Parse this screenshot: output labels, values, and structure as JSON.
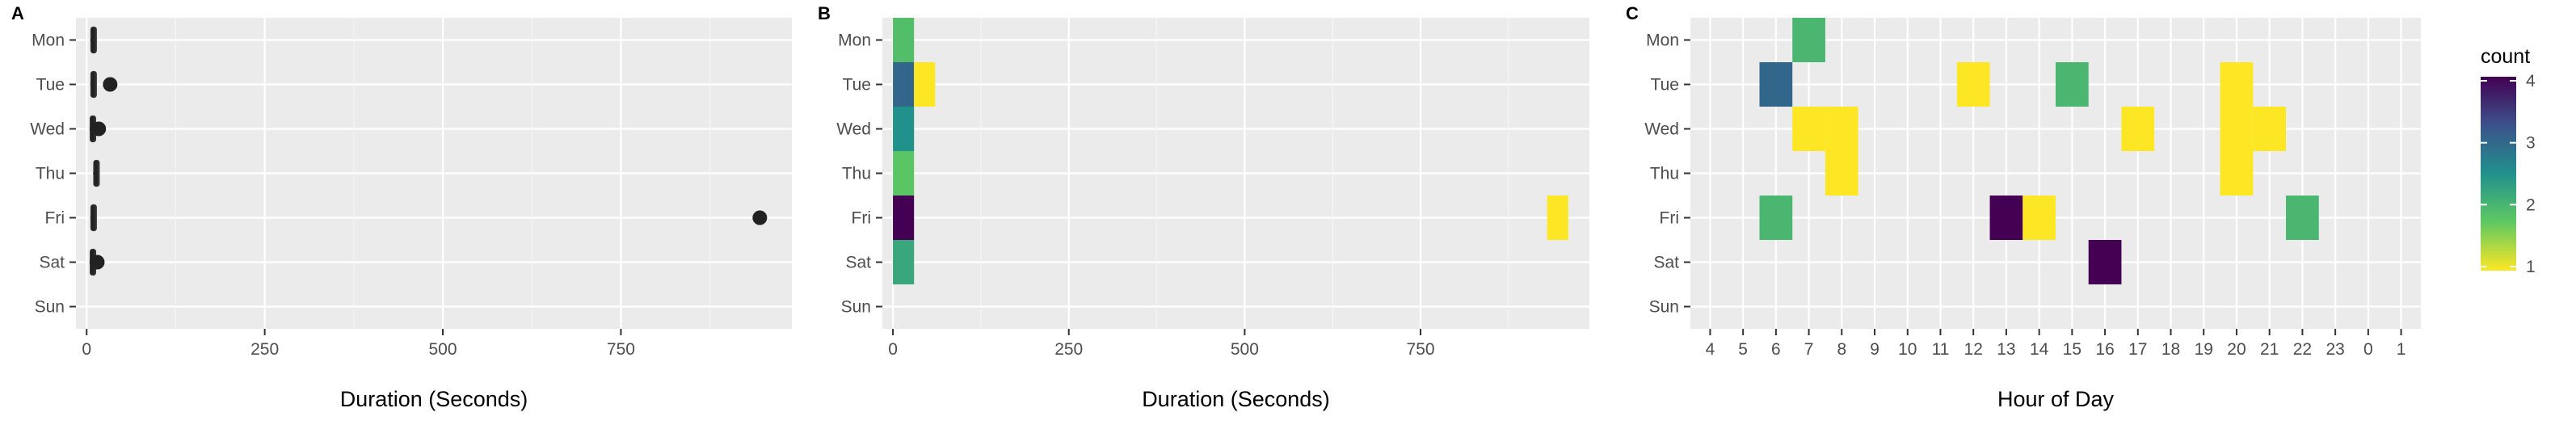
{
  "figure": {
    "panel_labels": [
      "A",
      "B",
      "C"
    ]
  },
  "chart_data": [
    {
      "type": "boxplot",
      "panel": "A",
      "xlabel": "Duration (Seconds)",
      "ylabel": "",
      "categories": [
        "Mon",
        "Tue",
        "Wed",
        "Thu",
        "Fri",
        "Sat",
        "Sun"
      ],
      "xlim": [
        -15,
        990
      ],
      "xticks": [
        0,
        250,
        500,
        750
      ],
      "boxes": [
        {
          "day": "Mon",
          "min": 5,
          "q1": 7,
          "median": 9,
          "q3": 11,
          "max": 13,
          "outliers": []
        },
        {
          "day": "Tue",
          "min": 5,
          "q1": 7,
          "median": 9,
          "q3": 11,
          "max": 13,
          "outliers": [
            33
          ]
        },
        {
          "day": "Wed",
          "min": 4,
          "q1": 6,
          "median": 8,
          "q3": 10,
          "max": 12,
          "outliers": [
            17
          ]
        },
        {
          "day": "Thu",
          "min": 9,
          "q1": 11,
          "median": 13,
          "q3": 15,
          "max": 17,
          "outliers": []
        },
        {
          "day": "Fri",
          "min": 5,
          "q1": 7,
          "median": 9,
          "q3": 11,
          "max": 13,
          "outliers": [
            945
          ]
        },
        {
          "day": "Sat",
          "min": 4,
          "q1": 6,
          "median": 8,
          "q3": 10,
          "max": 12,
          "outliers": [
            15
          ]
        },
        {
          "day": "Sun",
          "min": null,
          "q1": null,
          "median": null,
          "q3": null,
          "max": null,
          "outliers": []
        }
      ],
      "grid": true
    },
    {
      "type": "heatmap",
      "panel": "B",
      "xlabel": "Duration (Seconds)",
      "ylabel": "",
      "categories": [
        "Mon",
        "Tue",
        "Wed",
        "Thu",
        "Fri",
        "Sat",
        "Sun"
      ],
      "xlim": [
        -15,
        990
      ],
      "xticks": [
        0,
        250,
        500,
        750
      ],
      "bin_width": 30,
      "cells": [
        {
          "day": "Mon",
          "x": 15,
          "count": 1.9
        },
        {
          "day": "Tue",
          "x": 15,
          "count": 3.0
        },
        {
          "day": "Tue",
          "x": 45,
          "count": 1.0
        },
        {
          "day": "Wed",
          "x": 15,
          "count": 2.5
        },
        {
          "day": "Thu",
          "x": 15,
          "count": 1.8
        },
        {
          "day": "Fri",
          "x": 15,
          "count": 4.0
        },
        {
          "day": "Fri",
          "x": 945,
          "count": 1.0
        },
        {
          "day": "Sat",
          "x": 15,
          "count": 2.2
        }
      ],
      "grid": true
    },
    {
      "type": "heatmap",
      "panel": "C",
      "xlabel": "Hour of Day",
      "ylabel": "",
      "categories": [
        "Mon",
        "Tue",
        "Wed",
        "Thu",
        "Fri",
        "Sat",
        "Sun"
      ],
      "hours": [
        "4",
        "5",
        "6",
        "7",
        "8",
        "9",
        "10",
        "11",
        "12",
        "13",
        "14",
        "15",
        "16",
        "17",
        "18",
        "19",
        "20",
        "21",
        "22",
        "23",
        "0",
        "1"
      ],
      "cells": [
        {
          "day": "Mon",
          "hour": "7",
          "count": 2
        },
        {
          "day": "Tue",
          "hour": "6",
          "count": 3
        },
        {
          "day": "Tue",
          "hour": "12",
          "count": 1
        },
        {
          "day": "Tue",
          "hour": "15",
          "count": 2
        },
        {
          "day": "Tue",
          "hour": "20",
          "count": 1
        },
        {
          "day": "Wed",
          "hour": "7",
          "count": 1
        },
        {
          "day": "Wed",
          "hour": "8",
          "count": 1
        },
        {
          "day": "Wed",
          "hour": "17",
          "count": 1
        },
        {
          "day": "Wed",
          "hour": "20",
          "count": 1
        },
        {
          "day": "Wed",
          "hour": "21",
          "count": 1
        },
        {
          "day": "Thu",
          "hour": "8",
          "count": 1
        },
        {
          "day": "Thu",
          "hour": "20",
          "count": 1
        },
        {
          "day": "Fri",
          "hour": "6",
          "count": 2
        },
        {
          "day": "Fri",
          "hour": "13",
          "count": 4
        },
        {
          "day": "Fri",
          "hour": "14",
          "count": 1
        },
        {
          "day": "Fri",
          "hour": "22",
          "count": 2
        },
        {
          "day": "Sat",
          "hour": "16",
          "count": 4
        }
      ],
      "legend": {
        "title": "count",
        "ticks": [
          1,
          2,
          3,
          4
        ],
        "placement": "right"
      },
      "colormap": [
        "#fde725",
        "#21918c",
        "#31688e",
        "#440154"
      ],
      "grid": true
    }
  ]
}
